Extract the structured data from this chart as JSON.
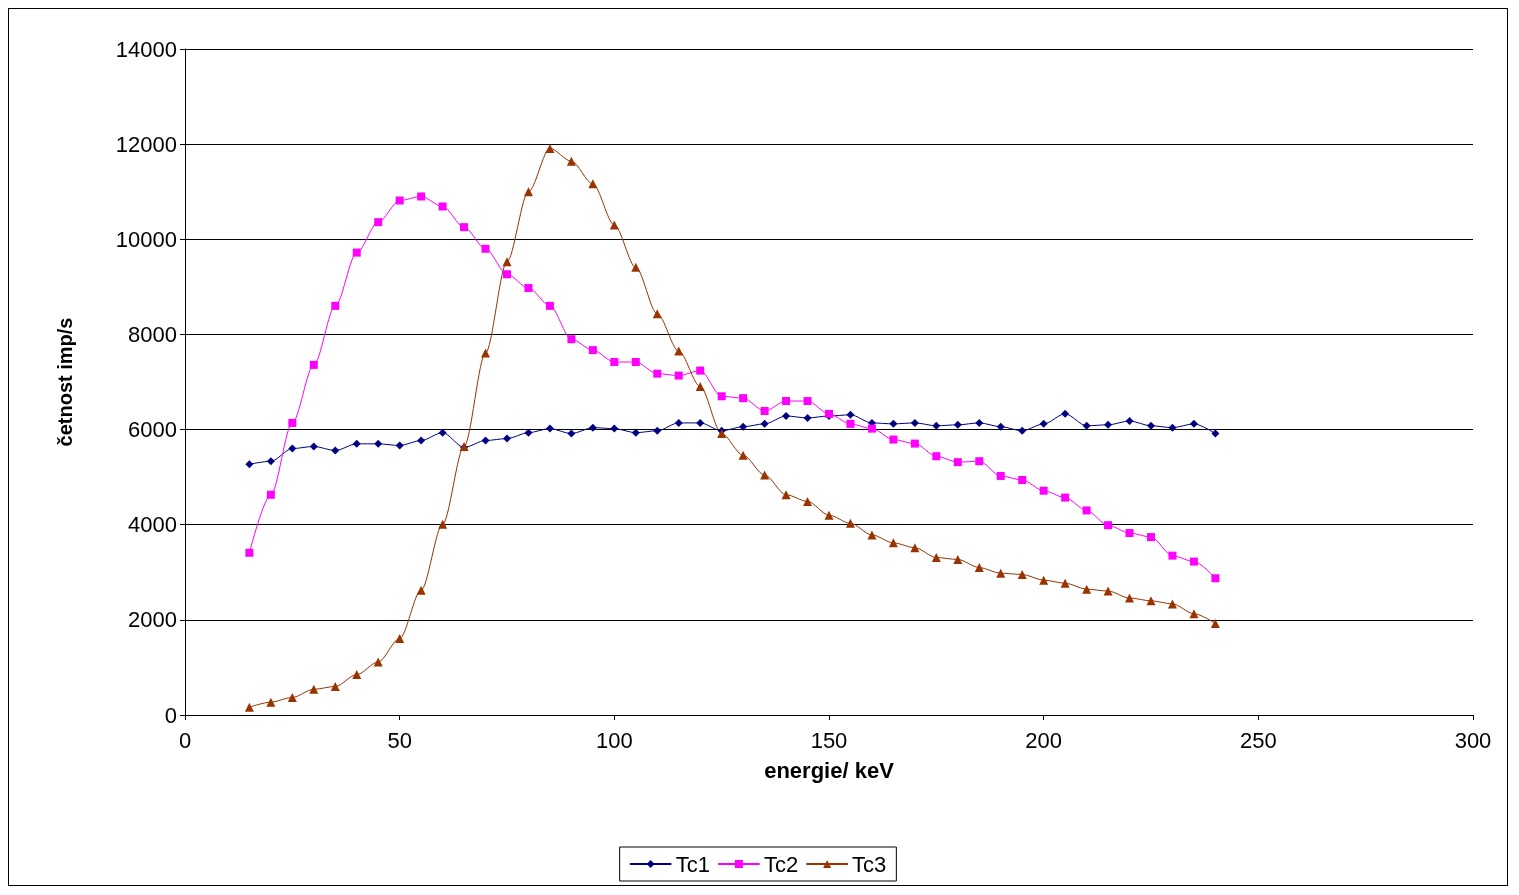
{
  "chart_data": {
    "type": "line",
    "xlabel": "energie/ keV",
    "ylabel": "četnost imp/s",
    "x": [
      15,
      20,
      25,
      30,
      35,
      40,
      45,
      50,
      55,
      60,
      65,
      70,
      75,
      80,
      85,
      90,
      95,
      100,
      105,
      110,
      115,
      120,
      125,
      130,
      135,
      140,
      145,
      150,
      155,
      160,
      165,
      170,
      175,
      180,
      185,
      190,
      195,
      200,
      205,
      210,
      215,
      220,
      225,
      230,
      235,
      240
    ],
    "series": [
      {
        "name": "Tc1",
        "color": "#000080",
        "marker": "diamond",
        "values": [
          5270,
          5335,
          5600,
          5645,
          5560,
          5700,
          5700,
          5665,
          5770,
          5935,
          5625,
          5770,
          5810,
          5935,
          6020,
          5915,
          6040,
          6020,
          5935,
          5975,
          6140,
          6140,
          5975,
          6060,
          6120,
          6285,
          6245,
          6285,
          6310,
          6140,
          6120,
          6140,
          6080,
          6100,
          6140,
          6060,
          5975,
          6120,
          6330,
          6080,
          6100,
          6180,
          6080,
          6040,
          6120,
          5915
        ]
      },
      {
        "name": "Tc2",
        "color": "#ff00ff",
        "marker": "square",
        "values": [
          3410,
          4630,
          6140,
          7360,
          8600,
          9720,
          10360,
          10815,
          10900,
          10690,
          10255,
          9800,
          9265,
          8975,
          8600,
          7900,
          7670,
          7420,
          7420,
          7175,
          7135,
          7240,
          6700,
          6660,
          6390,
          6600,
          6600,
          6330,
          6120,
          6020,
          5790,
          5705,
          5440,
          5315,
          5335,
          5025,
          4940,
          4715,
          4570,
          4300,
          3990,
          3825,
          3740,
          3350,
          3225,
          2875
        ]
      },
      {
        "name": "Tc3",
        "color": "#993300",
        "marker": "triangle",
        "values": [
          165,
          270,
          370,
          540,
          600,
          850,
          1115,
          1610,
          2625,
          4010,
          5645,
          7610,
          9530,
          11000,
          11910,
          11640,
          11165,
          10300,
          9410,
          8435,
          7650,
          6905,
          5915,
          5460,
          5045,
          4630,
          4490,
          4200,
          4030,
          3785,
          3620,
          3515,
          3310,
          3270,
          3100,
          2980,
          2955,
          2835,
          2770,
          2645,
          2605,
          2460,
          2400,
          2335,
          2130,
          1925
        ]
      }
    ],
    "xlim": [
      0,
      300
    ],
    "xticks": [
      0,
      50,
      100,
      150,
      200,
      250,
      300
    ],
    "ylim": [
      0,
      14000
    ],
    "yticks": [
      0,
      2000,
      4000,
      6000,
      8000,
      10000,
      12000,
      14000
    ],
    "grid": "y",
    "legend": "bottom"
  }
}
